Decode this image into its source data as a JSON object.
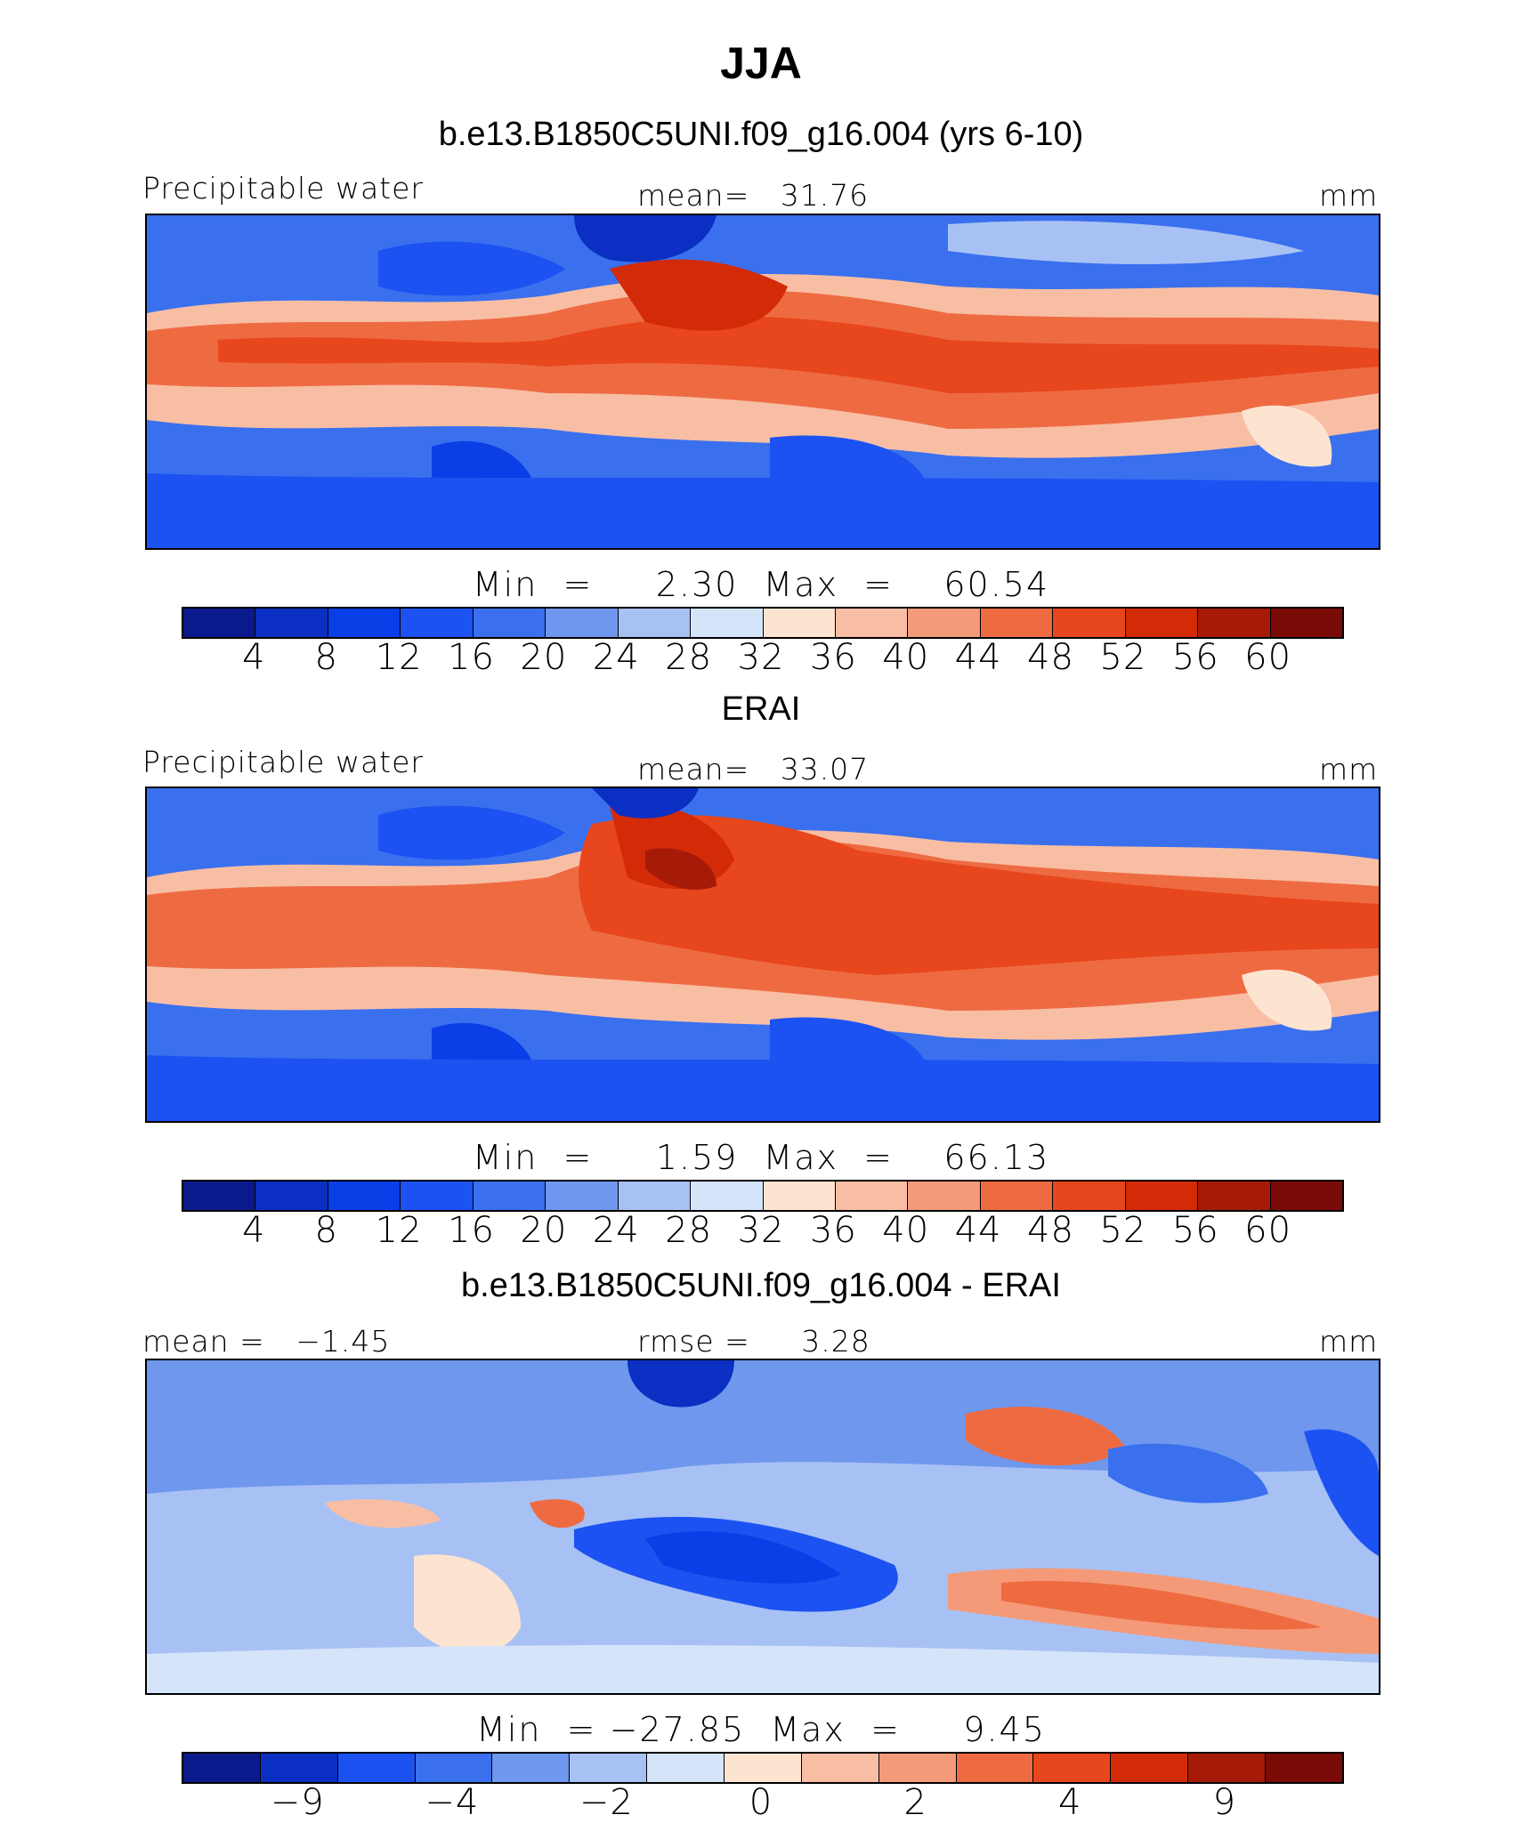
{
  "figure": {
    "title": "JJA"
  },
  "colors": {
    "abs_scale": [
      "#0a1a8c",
      "#0a2fc2",
      "#0a3ee6",
      "#1c52f2",
      "#3a70ee",
      "#6f97ee",
      "#a8c1f4",
      "#d5e4f9",
      "#fde4d1",
      "#f8bea4",
      "#f49a78",
      "#ee6b42",
      "#e8461c",
      "#d32a08",
      "#a61b08",
      "#7a0a06"
    ],
    "diff_scale": [
      "#0a1a8c",
      "#0a2fc2",
      "#1c52f2",
      "#3a70ee",
      "#6f97ee",
      "#a8c1f4",
      "#d5e4f9",
      "#fde4d1",
      "#f8bea4",
      "#f49a78",
      "#ee6b42",
      "#e8461c",
      "#d32a08",
      "#a61b08",
      "#7a0a06"
    ]
  },
  "chart_data": [
    {
      "type": "heatmap",
      "title": "b.e13.B1850C5UNI.f09_g16.004 (yrs 6-10)",
      "left_label": "Precipitable water",
      "center_label": "mean=   31.76",
      "right_label": "mm",
      "mean": 31.76,
      "min": 2.3,
      "max": 60.54,
      "minmax_text": "Min  =     2.30  Max  =    60.54",
      "colorbar_ticks": [
        "4",
        "8",
        "12",
        "16",
        "20",
        "24",
        "28",
        "32",
        "36",
        "40",
        "44",
        "48",
        "52",
        "56",
        "60"
      ]
    },
    {
      "type": "heatmap",
      "title": "ERAI",
      "left_label": "Precipitable water",
      "center_label": "mean=   33.07",
      "right_label": "mm",
      "mean": 33.07,
      "min": 1.59,
      "max": 66.13,
      "minmax_text": "Min  =     1.59  Max  =    66.13",
      "colorbar_ticks": [
        "4",
        "8",
        "12",
        "16",
        "20",
        "24",
        "28",
        "32",
        "36",
        "40",
        "44",
        "48",
        "52",
        "56",
        "60"
      ]
    },
    {
      "type": "heatmap",
      "title": "b.e13.B1850C5UNI.f09_g16.004 - ERAI",
      "left_label": "mean =   −1.45",
      "center_label": "rmse =     3.28",
      "right_label": "mm",
      "mean": -1.45,
      "rmse": 3.28,
      "min": -27.85,
      "max": 9.45,
      "minmax_text": "Min  = −27.85  Max  =     9.45",
      "colorbar_ticks": [
        "−9",
        "−4",
        "−2",
        "0",
        "2",
        "4",
        "9"
      ]
    }
  ]
}
